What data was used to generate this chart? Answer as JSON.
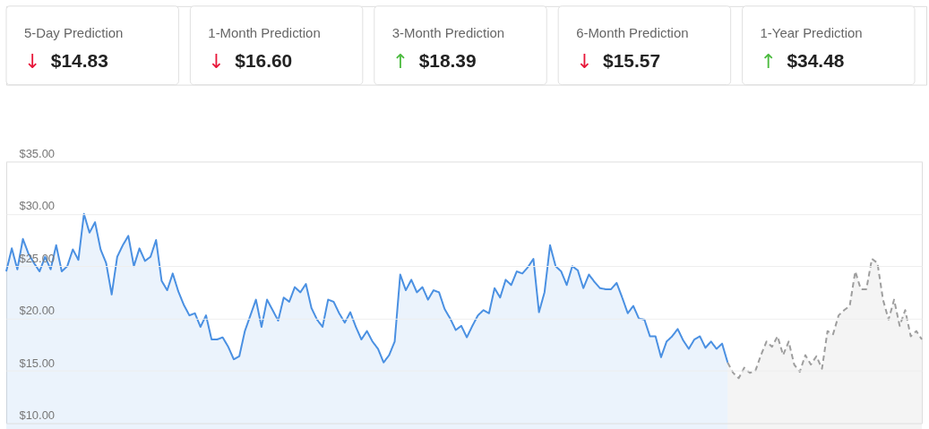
{
  "chart_data": [
    {
      "type": "other",
      "annotations": [
        "5-Day Prediction",
        "↓",
        "$14.83",
        "1-Month Prediction",
        "↓",
        "$16.60",
        "3-Month Prediction",
        "↑",
        "$18.39",
        "6-Month Prediction",
        "↓",
        "$15.57",
        "1-Year Prediction",
        "↑",
        "$34.48"
      ],
      "colors": [
        "#e8173a",
        "#e8173a",
        "#4cbb3f",
        "#e8173a",
        "#4cbb3f"
      ]
    },
    {
      "type": "area",
      "ylim": [
        10,
        35
      ],
      "yticks": [
        {
          "value": 10,
          "label": "$10.00"
        },
        {
          "value": 15,
          "label": "$15.00"
        },
        {
          "value": 20,
          "label": "$20.00"
        },
        {
          "value": 25,
          "label": "$25.00"
        },
        {
          "value": 30,
          "label": "$30.00"
        },
        {
          "value": 35,
          "label": "$35.00"
        }
      ],
      "grid": "y",
      "tick_labels": "y",
      "categories": [
        null,
        null,
        null,
        null,
        null,
        null,
        null,
        null,
        null,
        null,
        null,
        null,
        null,
        null,
        null,
        null,
        null,
        null,
        null,
        null,
        null,
        null,
        null,
        null,
        null,
        null,
        null,
        null,
        null,
        null,
        null,
        null,
        null,
        null,
        null,
        null,
        null,
        null,
        null,
        null,
        null,
        null,
        null,
        null,
        null,
        null,
        null,
        null,
        null,
        null,
        null,
        null,
        null,
        null,
        null,
        null,
        null,
        null,
        null,
        null,
        null,
        null,
        null,
        null,
        null,
        null,
        null,
        null,
        null,
        null,
        null,
        null,
        null,
        null,
        null,
        null,
        null,
        null,
        null,
        null,
        null,
        null,
        null,
        null,
        null,
        null,
        null,
        null,
        null,
        null,
        null,
        null,
        null,
        null,
        null,
        null,
        null,
        null,
        null,
        null,
        null,
        null,
        null,
        null,
        null,
        null,
        null,
        null,
        null,
        null,
        null,
        null,
        null,
        null,
        null,
        null,
        null,
        null,
        null,
        null,
        null,
        null,
        null,
        null,
        null,
        null,
        null,
        null,
        null,
        null,
        null,
        null,
        null,
        null,
        null,
        null,
        null,
        null,
        null,
        null,
        null,
        null,
        null,
        null,
        null,
        null,
        null,
        null,
        null,
        null,
        null,
        null,
        null,
        null,
        null,
        null,
        null,
        null,
        null,
        null,
        null,
        null,
        null,
        null,
        null,
        null
      ],
      "series": [
        {
          "color": "#4a90e2",
          "line_style": "solid",
          "values": [
            24.5,
            26.7,
            24.7,
            27.6,
            26.2,
            25.3,
            24.5,
            25.9,
            24.7,
            27.0,
            24.5,
            25.0,
            26.6,
            25.6,
            30.0,
            28.2,
            29.2,
            26.6,
            25.3,
            22.3,
            25.9,
            27.0,
            27.9,
            25.0,
            26.7,
            25.5,
            25.9,
            27.5,
            23.6,
            22.7,
            24.3,
            22.6,
            21.3,
            20.3,
            20.5,
            19.2,
            20.3,
            18.0,
            18.0,
            18.2,
            17.3,
            16.1,
            16.4,
            18.8,
            20.3,
            21.8,
            19.2,
            21.8,
            20.8,
            19.8,
            22.0,
            21.6,
            23.0,
            22.5,
            23.3,
            21.0,
            19.9,
            19.2,
            21.8,
            21.6,
            20.5,
            19.6,
            20.6,
            19.2,
            18.0,
            18.8,
            17.8,
            17.1,
            15.8,
            16.5,
            17.8,
            24.2,
            22.7,
            23.7,
            22.5,
            23.0,
            21.8,
            22.7,
            22.5,
            20.9,
            20.0,
            18.9,
            19.3,
            18.2,
            19.3,
            20.3,
            20.8,
            20.5,
            22.9,
            22.0,
            23.7,
            23.2,
            24.5,
            24.3,
            24.9,
            25.7,
            20.6,
            22.5,
            27.0,
            25.0,
            24.5,
            23.2,
            25.0,
            24.6,
            22.9,
            24.2,
            23.5,
            22.9,
            22.8,
            22.8,
            23.4,
            22.0,
            20.5,
            21.2,
            20.0,
            19.9,
            18.3,
            18.3,
            16.3,
            17.8,
            18.3,
            19.0,
            17.9,
            17.1,
            18.0,
            18.3,
            17.2,
            17.8,
            17.1,
            17.6,
            15.8,
            null,
            null,
            null,
            null,
            null,
            null,
            null,
            null,
            null,
            null,
            null,
            null,
            null,
            null,
            null,
            null,
            null,
            null,
            null,
            null,
            null,
            null,
            null,
            null,
            null,
            null,
            null,
            null,
            null,
            null,
            null,
            null,
            null,
            null,
            null
          ]
        },
        {
          "color": "#9e9e9e",
          "line_style": "dashed",
          "values": [
            null,
            null,
            null,
            null,
            null,
            null,
            null,
            null,
            null,
            null,
            null,
            null,
            null,
            null,
            null,
            null,
            null,
            null,
            null,
            null,
            null,
            null,
            null,
            null,
            null,
            null,
            null,
            null,
            null,
            null,
            null,
            null,
            null,
            null,
            null,
            null,
            null,
            null,
            null,
            null,
            null,
            null,
            null,
            null,
            null,
            null,
            null,
            null,
            null,
            null,
            null,
            null,
            null,
            null,
            null,
            null,
            null,
            null,
            null,
            null,
            null,
            null,
            null,
            null,
            null,
            null,
            null,
            null,
            null,
            null,
            null,
            null,
            null,
            null,
            null,
            null,
            null,
            null,
            null,
            null,
            null,
            null,
            null,
            null,
            null,
            null,
            null,
            null,
            null,
            null,
            null,
            null,
            null,
            null,
            null,
            null,
            null,
            null,
            null,
            null,
            null,
            null,
            null,
            null,
            null,
            null,
            null,
            null,
            null,
            null,
            null,
            null,
            null,
            null,
            null,
            null,
            null,
            null,
            null,
            null,
            null,
            null,
            null,
            null,
            null,
            null,
            null,
            null,
            null,
            null,
            15.8,
            14.8,
            14.3,
            15.3,
            14.8,
            15.0,
            16.5,
            17.8,
            17.3,
            18.3,
            16.5,
            17.8,
            15.6,
            14.9,
            16.5,
            15.6,
            16.4,
            15.2,
            18.8,
            18.5,
            20.3,
            20.8,
            21.2,
            24.5,
            22.8,
            22.8,
            25.7,
            25.3,
            21.8,
            19.9,
            21.8,
            19.3,
            20.8,
            18.3,
            18.8,
            18.0
          ]
        }
      ]
    }
  ]
}
